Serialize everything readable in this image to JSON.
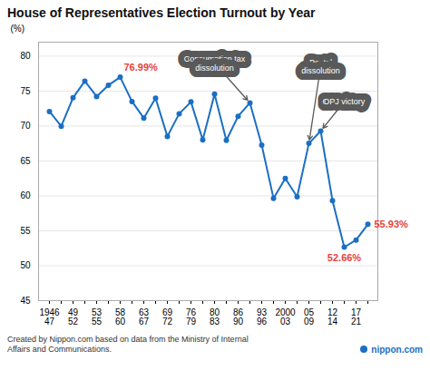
{
  "chart_data": {
    "type": "line",
    "title": "House of Representatives Election Turnout by Year",
    "ylabel": "(%)",
    "categories": [
      "1946\n47",
      null,
      "49\n52",
      null,
      "53\n55",
      null,
      "58\n60",
      null,
      "63\n67",
      null,
      "69\n72",
      null,
      "76\n79",
      null,
      "80\n83",
      null,
      "86\n90",
      null,
      "93\n96",
      null,
      "2000\n03",
      null,
      "05\n09",
      null,
      "12\n14",
      null,
      "17\n21",
      null
    ],
    "values": [
      72.08,
      69.97,
      74.04,
      76.43,
      74.22,
      75.84,
      76.99,
      73.51,
      71.14,
      73.99,
      68.51,
      71.76,
      73.45,
      68.01,
      74.57,
      67.94,
      71.4,
      73.31,
      67.26,
      59.65,
      62.49,
      59.86,
      67.51,
      69.28,
      59.32,
      52.66,
      53.68,
      55.93
    ],
    "value_labels": [
      null,
      null,
      null,
      null,
      null,
      null,
      "76.99%",
      null,
      null,
      null,
      null,
      null,
      null,
      null,
      null,
      null,
      null,
      null,
      null,
      null,
      null,
      null,
      null,
      null,
      null,
      "52.66%",
      null,
      "55.93%"
    ],
    "color": "#1a6fc4",
    "marker": "circle",
    "ylim": [
      45,
      82
    ],
    "yticks": [
      45,
      50,
      55,
      60,
      65,
      70,
      75,
      80
    ],
    "grid": true,
    "annotations": [
      {
        "text": "Consumption tax\ndissolution",
        "x": 17,
        "y": 73.31
      },
      {
        "text": "Postal\ndissolution",
        "x": 22,
        "y": 67.51
      },
      {
        "text": "DPJ victory",
        "x": 23,
        "y": 69.28
      }
    ],
    "caption": "Created by Nippon.com based on data from the Ministry of Internal\nAffairs and Communications.",
    "credit": "nippon.com"
  }
}
